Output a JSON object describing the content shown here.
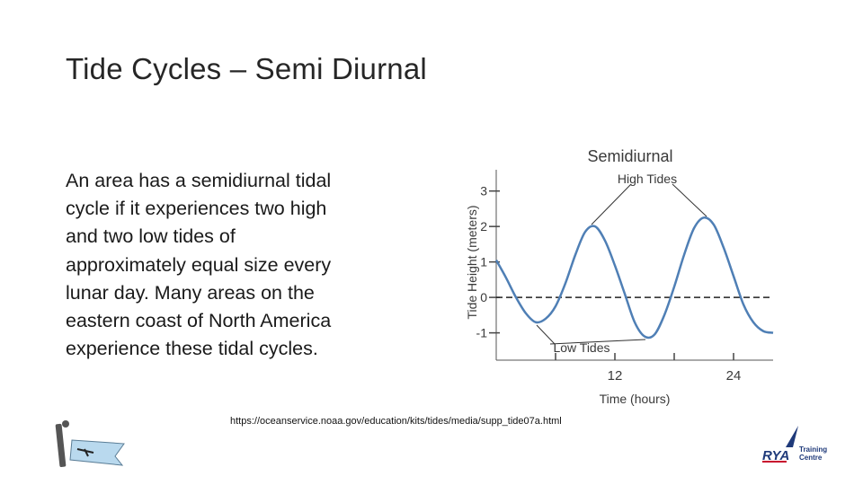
{
  "slide_title": "Tide Cycles – Semi Diurnal",
  "body_lines": [
    "An area has a semidiurnal tidal",
    "cycle if it experiences two high",
    "and two low tides of",
    "approximately equal size every",
    "lunar day. Many areas on the",
    "eastern coast of North America",
    "experience these tidal cycles."
  ],
  "source_url": "https://oceanservice.noaa.gov/education/kits/tides/media/supp_tide07a.html",
  "logo_text": [
    "RYA",
    "Training",
    "Centre"
  ],
  "chart_data": {
    "type": "line",
    "title": "Semidiurnal",
    "x_label": "Time (hours)",
    "y_label": "Tide Height (meters)",
    "annotations": [
      "High Tides",
      "Low Tides"
    ],
    "x": [
      0,
      1,
      2,
      3,
      4,
      5,
      6,
      7,
      8,
      9,
      10,
      11,
      12,
      13,
      14,
      15,
      16,
      17,
      18,
      19,
      20,
      21,
      22,
      23,
      24,
      25,
      26,
      27,
      28
    ],
    "values": [
      1.05,
      0.55,
      0.0,
      -0.45,
      -0.7,
      -0.6,
      -0.25,
      0.4,
      1.2,
      1.85,
      2.0,
      1.6,
      0.9,
      0.1,
      -0.7,
      -1.1,
      -1.05,
      -0.5,
      0.3,
      1.2,
      1.95,
      2.25,
      2.05,
      1.4,
      0.6,
      -0.2,
      -0.7,
      -0.95,
      -1.0
    ],
    "color": "#4f7fb5",
    "xlim": [
      0,
      28
    ],
    "ylim": [
      -1.77,
      3.6
    ],
    "xticks": [
      12,
      24
    ],
    "minor_xticks": [
      6,
      18
    ],
    "yticks": [
      -1,
      0,
      1,
      2,
      3
    ],
    "hlines": [
      0
    ]
  }
}
